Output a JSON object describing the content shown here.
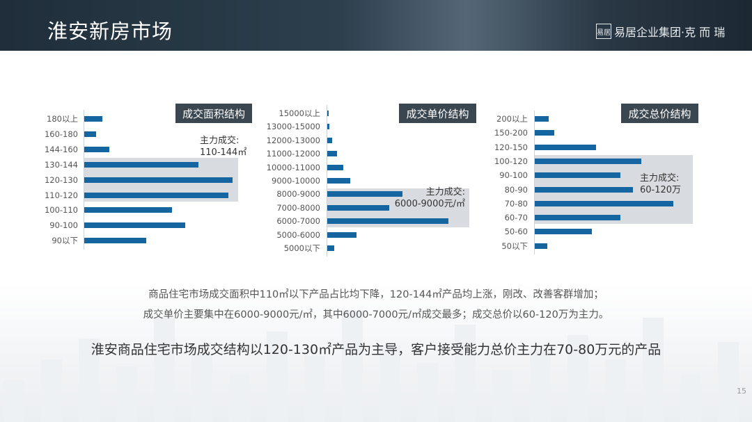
{
  "header": {
    "title": "淮安新房市场",
    "logo_mark": "易居",
    "logo_text": "易居企业集团·克 而 瑞"
  },
  "chart_data": [
    {
      "type": "bar",
      "orientation": "horizontal",
      "title": "成交面积结构",
      "categories": [
        "180以上",
        "160-180",
        "144-160",
        "130-144",
        "120-130",
        "110-120",
        "100-110",
        "90-100",
        "90以下"
      ],
      "values": [
        12,
        8,
        17,
        77,
        100,
        97,
        59,
        68,
        42
      ],
      "highlight": [
        "130-144",
        "120-130",
        "110-120"
      ],
      "annotation": {
        "line1": "主力成交:",
        "line2": "110-144㎡"
      },
      "grid": false,
      "color": "#1565a0"
    },
    {
      "type": "bar",
      "orientation": "horizontal",
      "title": "成交单价结构",
      "categories": [
        "15000以上",
        "13000-15000",
        "12000-13000",
        "11000-12000",
        "10000-11000",
        "9000-10000",
        "8000-9000",
        "7000-8000",
        "6000-7000",
        "5000-6000",
        "5000以下"
      ],
      "values": [
        1,
        2,
        4,
        8,
        13,
        19,
        62,
        51,
        100,
        24,
        6
      ],
      "highlight": [
        "8000-9000",
        "7000-8000",
        "6000-7000"
      ],
      "annotation": {
        "line1": "主力成交:",
        "line2": "6000-9000元/㎡"
      },
      "grid": false,
      "color": "#1565a0"
    },
    {
      "type": "bar",
      "orientation": "horizontal",
      "title": "成交总价结构",
      "categories": [
        "200以上",
        "150-200",
        "120-150",
        "100-120",
        "90-100",
        "80-90",
        "70-80",
        "60-70",
        "50-60",
        "50以下"
      ],
      "values": [
        10,
        14,
        44,
        77,
        62,
        71,
        100,
        62,
        41,
        9
      ],
      "highlight": [
        "100-120",
        "90-100",
        "80-90",
        "70-80",
        "60-70"
      ],
      "annotation": {
        "line1": "主力成交:",
        "line2": "60-120万"
      },
      "grid": false,
      "color": "#1565a0"
    }
  ],
  "notes": {
    "line1": "商品住宅市场成交面积中110㎡以下产品占比均下降，120-144㎡产品均上涨，刚改、改善客群增加；",
    "line2": "成交单价主要集中在6000-9000元/㎡，其中6000-7000元/㎡成交最多；成交总价以60-120万为主力。",
    "conclusion": "淮安商品住宅市场成交结构以120-130㎡产品为主导，客户接受能力总价主力在70-80万元的产品"
  },
  "page_number": "15"
}
